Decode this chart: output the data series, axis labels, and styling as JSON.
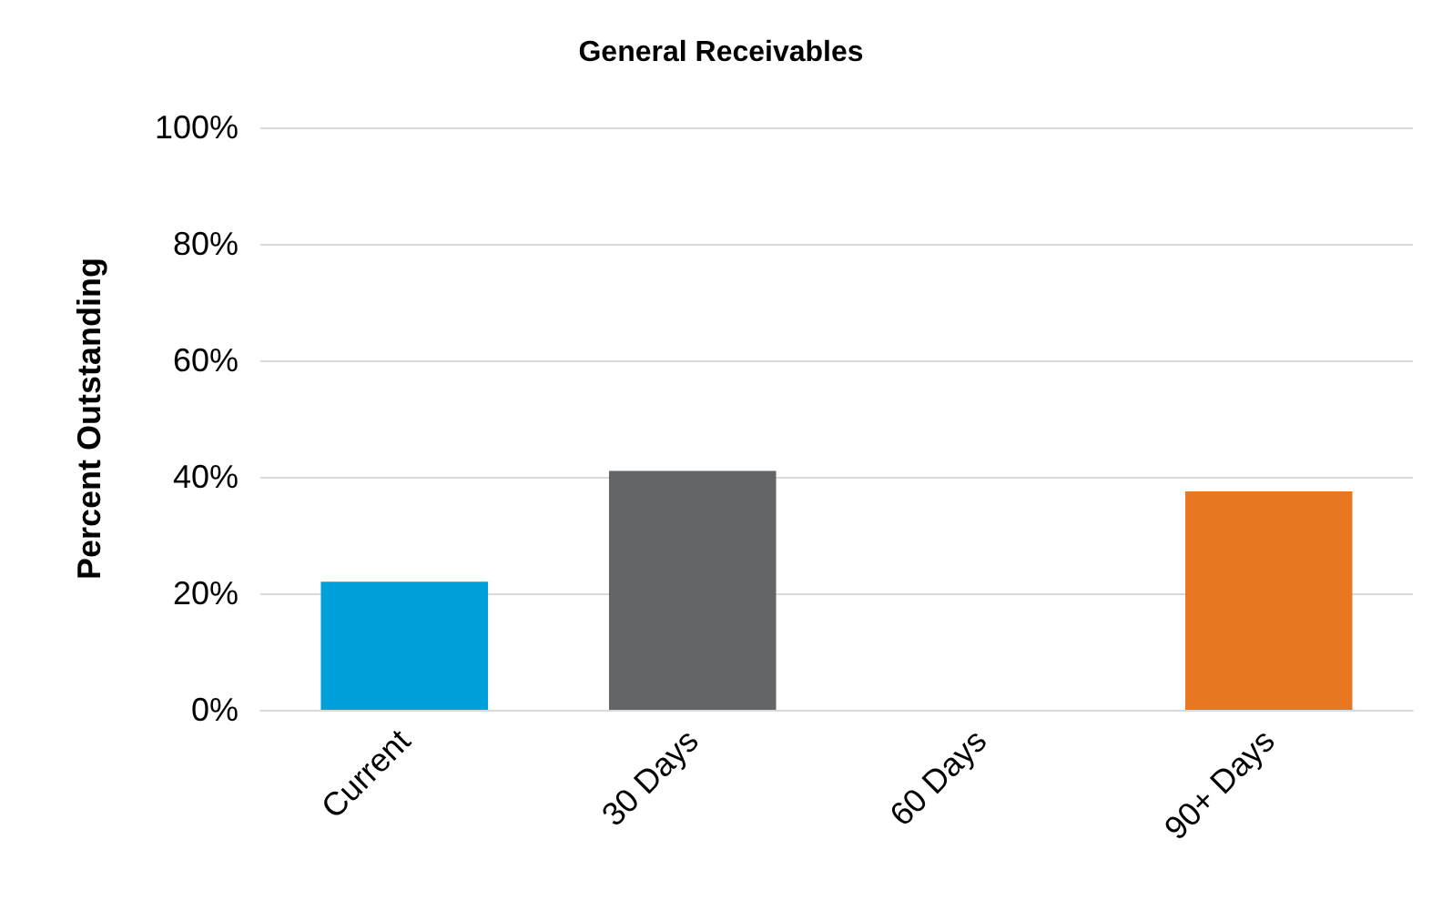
{
  "chart_data": {
    "type": "bar",
    "title": "General Receivables",
    "ylabel": "Percent Outstanding",
    "categories": [
      "Current",
      "30 Days",
      "60 Days",
      "90+ Days"
    ],
    "values": [
      22,
      41,
      0,
      37.5
    ],
    "colors": [
      "#00a0dd",
      "#636569",
      "#636569",
      "#e87722"
    ],
    "ylim": [
      0,
      100
    ],
    "yticks": [
      {
        "value": 0,
        "label": "0%"
      },
      {
        "value": 20,
        "label": "20%"
      },
      {
        "value": 40,
        "label": "40%"
      },
      {
        "value": 60,
        "label": "60%"
      },
      {
        "value": 80,
        "label": "80%"
      },
      {
        "value": 100,
        "label": "100%"
      }
    ],
    "grid": "y"
  }
}
